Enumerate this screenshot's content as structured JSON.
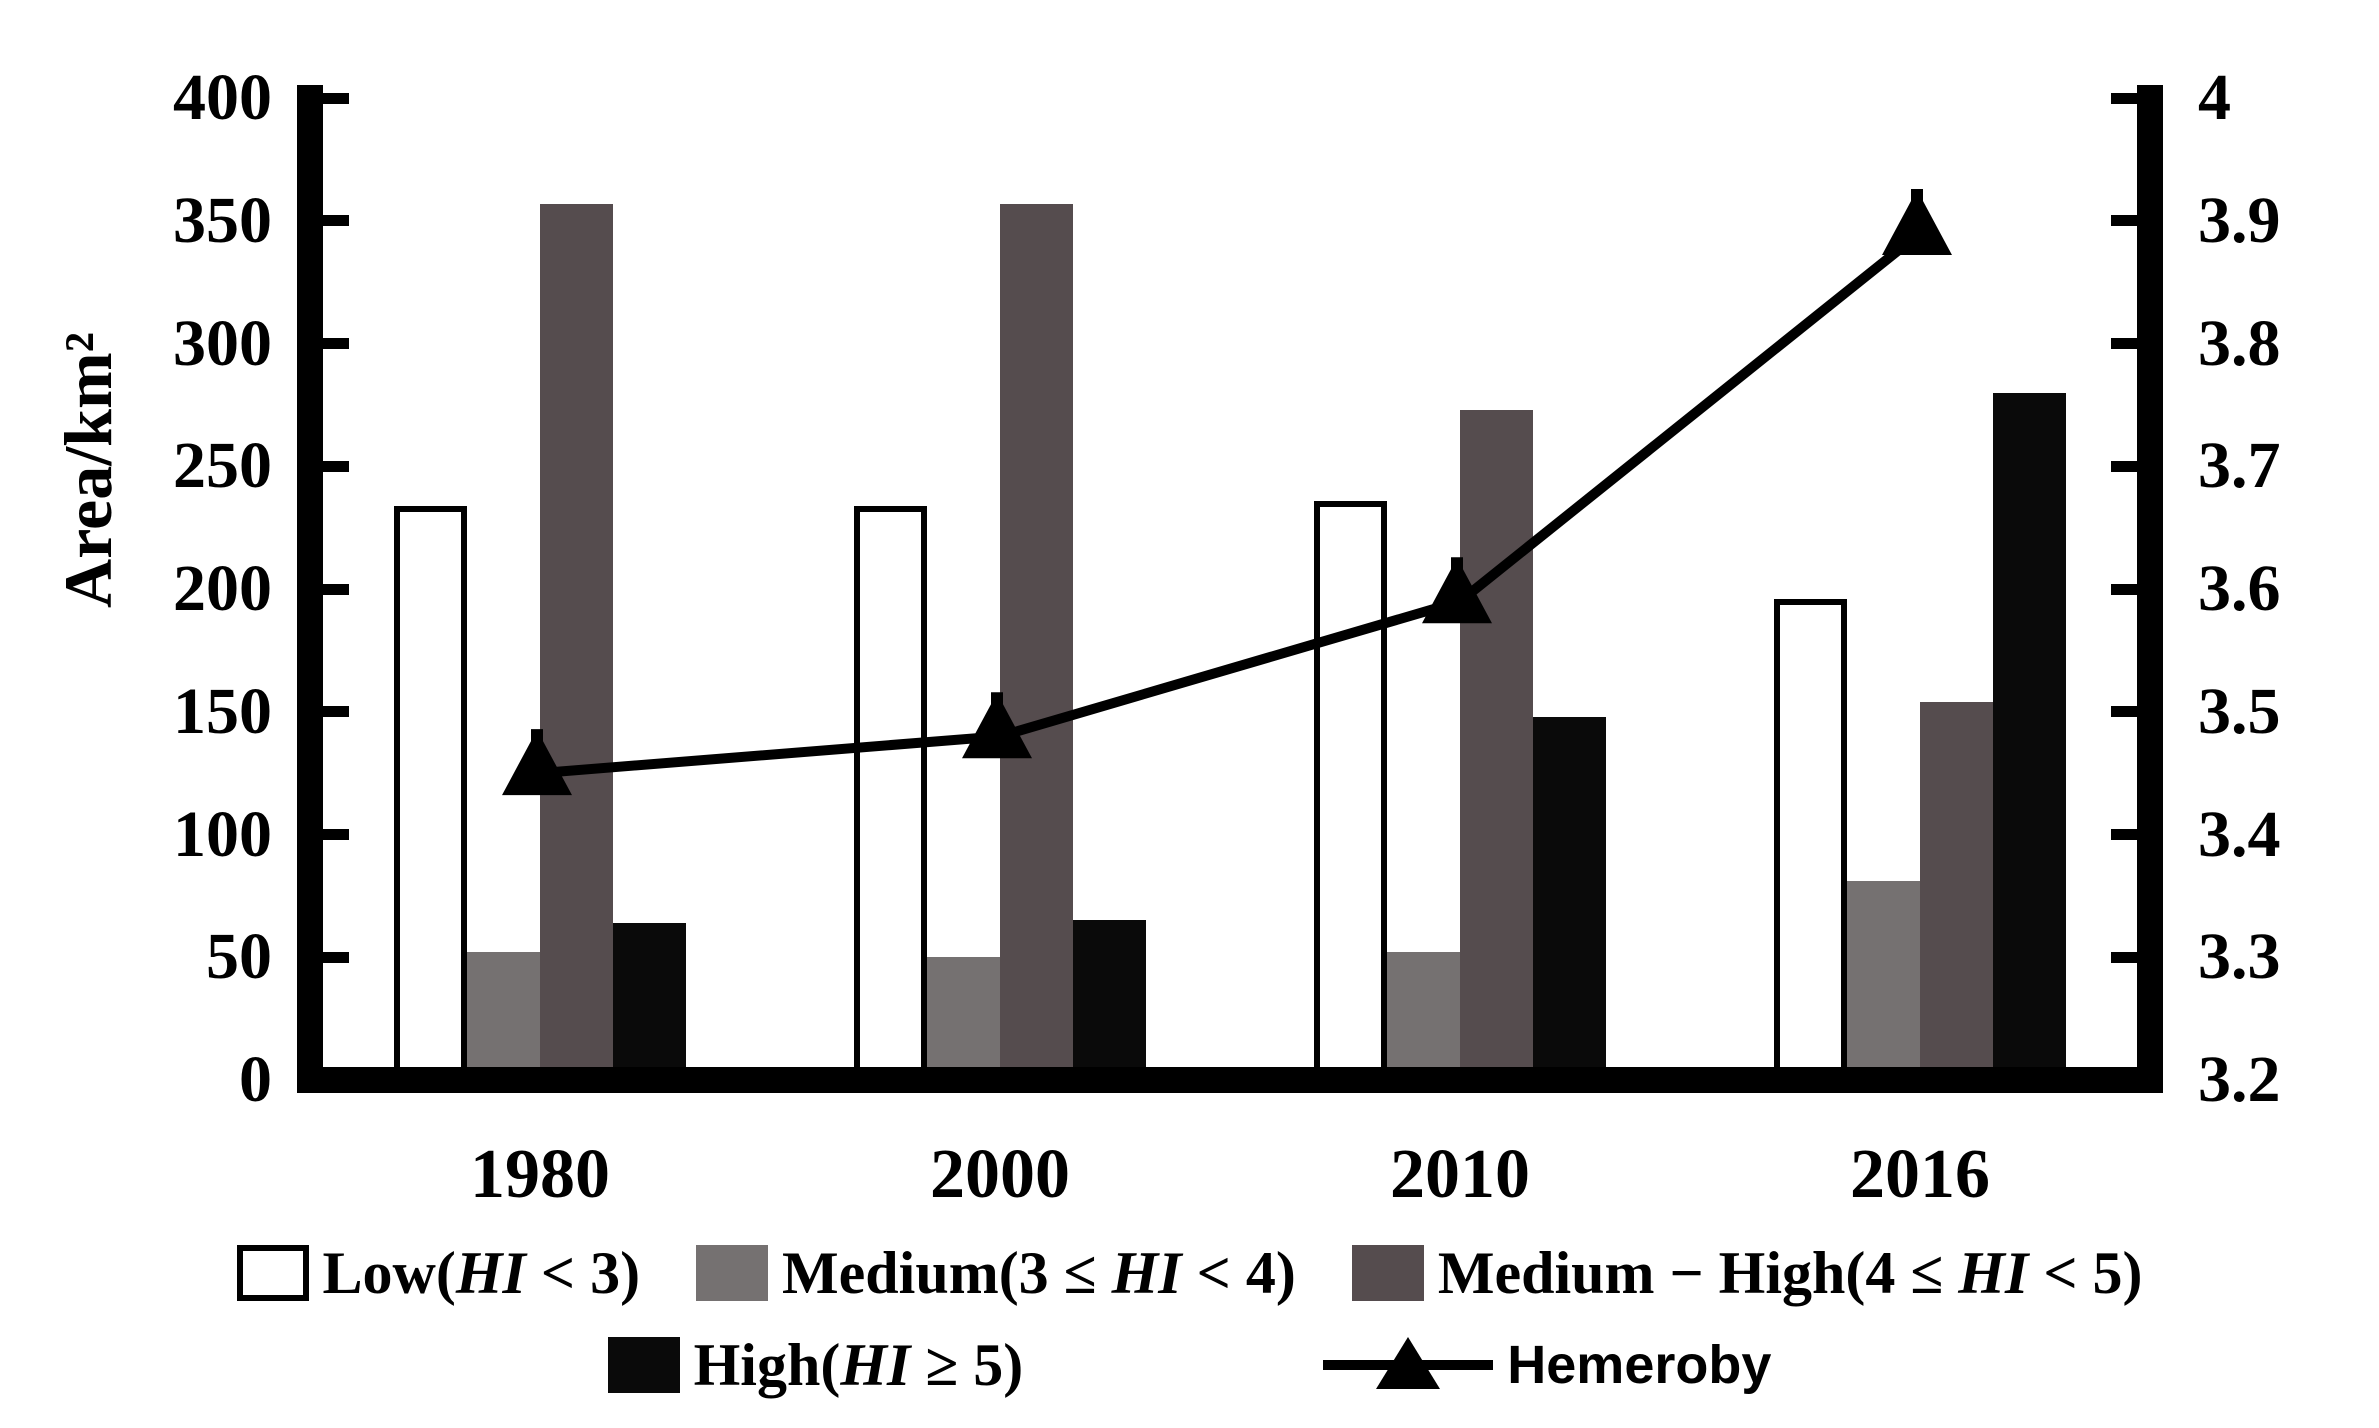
{
  "figure_title": "",
  "chart_data": {
    "type": "bar+line",
    "categories": [
      "1980",
      "2000",
      "2010",
      "2016"
    ],
    "series": [
      {
        "name": "Low(HI < 3)",
        "type": "bar",
        "style": "low",
        "axis": "left",
        "values": [
          234,
          234,
          236,
          196
        ]
      },
      {
        "name": "Medium(3 ≤ HI < 4)",
        "type": "bar",
        "style": "medium",
        "axis": "left",
        "values": [
          52,
          50,
          52,
          81
        ]
      },
      {
        "name": "Medium-High(4 ≤ HI < 5)",
        "type": "bar",
        "style": "medium-high",
        "axis": "left",
        "values": [
          357,
          357,
          273,
          154
        ]
      },
      {
        "name": "High(HI ≥ 5)",
        "type": "bar",
        "style": "high",
        "axis": "left",
        "values": [
          64,
          65,
          148,
          280
        ]
      },
      {
        "name": "Hemeroby",
        "type": "line",
        "style": "hemeroby",
        "axis": "right",
        "values": [
          3.45,
          3.48,
          3.59,
          3.89
        ]
      }
    ],
    "left_axis": {
      "label": "Area/km²",
      "min": 0,
      "max": 400,
      "ticks": [
        "400",
        "350",
        "300",
        "250",
        "200",
        "150",
        "100",
        "50",
        "0"
      ]
    },
    "right_axis": {
      "label": "",
      "min": 3.2,
      "max": 4,
      "ticks": [
        "4",
        "3.9",
        "3.8",
        "3.7",
        "3.6",
        "3.5",
        "3.4",
        "3.3",
        "3.2"
      ]
    },
    "grid": false,
    "legend_position": "bottom",
    "legend": {
      "rows": [
        {
          "items": [
            {
              "swatch": "low",
              "font": "serif",
              "segments": [
                {
                  "t": "Low(",
                  "i": false
                },
                {
                  "t": "HI",
                  "i": true
                },
                {
                  "t": " < 3)",
                  "i": false
                }
              ]
            },
            {
              "swatch": "medium",
              "font": "serif",
              "segments": [
                {
                  "t": "Medium(3 ≤ ",
                  "i": false
                },
                {
                  "t": "HI",
                  "i": true
                },
                {
                  "t": " < 4)",
                  "i": false
                }
              ]
            },
            {
              "swatch": "medium-high",
              "font": "serif",
              "segments": [
                {
                  "t": "Medium − High(4 ≤ ",
                  "i": false
                },
                {
                  "t": "HI",
                  "i": true
                },
                {
                  "t": " < 5)",
                  "i": false
                }
              ]
            }
          ]
        },
        {
          "items": [
            {
              "swatch": "high",
              "font": "serif",
              "segments": [
                {
                  "t": "High(",
                  "i": false
                },
                {
                  "t": "HI",
                  "i": true
                },
                {
                  "t": " ≥ 5)",
                  "i": false
                }
              ]
            },
            {
              "swatch": "hemeroby",
              "font": "sans",
              "segments": [
                {
                  "t": "Hemeroby",
                  "i": false
                }
              ]
            }
          ]
        }
      ]
    },
    "colors": {
      "low": "#ffffff",
      "medium": "#757171",
      "medium_high": "#554c4e",
      "high": "#0a0a0a",
      "line": "#000000",
      "axis": "#000000"
    }
  }
}
